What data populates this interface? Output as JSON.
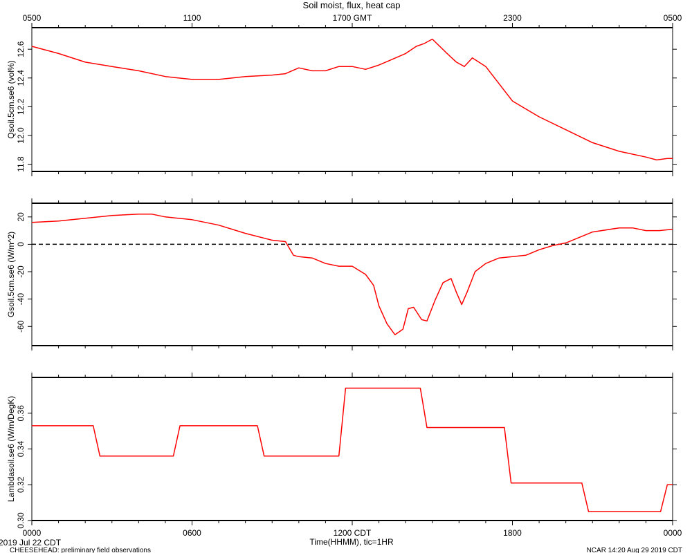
{
  "title": "Soil moist, flux, heat cap",
  "colors": {
    "series": "#ff0000",
    "axis": "#000000"
  },
  "x_axis": {
    "top_labels": [
      "0500",
      "1100",
      "1700 GMT",
      "2300",
      "0500"
    ],
    "bottom_labels": [
      "0000",
      "0600",
      "1200 CDT",
      "1800",
      "0000"
    ],
    "xlabel": "Time(HHMM), tic=1HR",
    "range_hours": [
      0,
      24
    ]
  },
  "footer": {
    "date": "2019 Jul 22 CDT",
    "project": "CHEESEHEAD: preliminary field observations",
    "stamp": "NCAR 14:20 Aug 29 2019 CDT"
  },
  "chart_data": [
    {
      "type": "line",
      "ylabel": "Qsoil.5cm.se6 (vol%)",
      "ylim": [
        11.75,
        12.75
      ],
      "yticks": [
        "11.8",
        "12.0",
        "12.2",
        "12.4",
        "12.6"
      ],
      "ytick_values": [
        11.8,
        12.0,
        12.2,
        12.4,
        12.6
      ],
      "x": [
        0,
        1,
        2,
        3,
        4,
        5,
        6,
        6.5,
        7,
        8,
        9,
        9.5,
        10,
        10.5,
        11,
        11.5,
        12,
        12.5,
        13,
        13.5,
        14,
        14.4,
        14.7,
        15,
        15.5,
        15.9,
        16.2,
        16.5,
        17,
        18,
        19,
        20,
        21,
        22,
        23,
        23.4,
        23.8,
        24
      ],
      "values": [
        12.62,
        12.57,
        12.51,
        12.48,
        12.45,
        12.41,
        12.39,
        12.39,
        12.39,
        12.41,
        12.42,
        12.43,
        12.47,
        12.45,
        12.45,
        12.48,
        12.48,
        12.46,
        12.49,
        12.53,
        12.57,
        12.62,
        12.64,
        12.67,
        12.58,
        12.51,
        12.48,
        12.54,
        12.48,
        12.24,
        12.13,
        12.04,
        11.95,
        11.89,
        11.85,
        11.83,
        11.84,
        11.84
      ]
    },
    {
      "type": "line",
      "ylabel": "Gsoil.5cm.se6 (W/m^2)",
      "ylim": [
        -74,
        30
      ],
      "yticks": [
        "20",
        "0",
        "-20",
        "-40",
        "-60"
      ],
      "ytick_values": [
        20,
        0,
        -20,
        -40,
        -60
      ],
      "reference_line": 0,
      "x": [
        0,
        1,
        2,
        3,
        4,
        4.5,
        5,
        6,
        7,
        8,
        9,
        9.5,
        9.8,
        10,
        10.5,
        11,
        11.5,
        12,
        12.5,
        12.8,
        13,
        13.3,
        13.6,
        13.9,
        14.1,
        14.3,
        14.6,
        14.8,
        15.1,
        15.4,
        15.7,
        15.9,
        16.1,
        16.3,
        16.6,
        17,
        17.5,
        18,
        18.5,
        19,
        19.5,
        20,
        21,
        22,
        22.5,
        23,
        23.5,
        24
      ],
      "values": [
        16,
        17,
        19,
        21,
        22,
        22,
        20,
        18,
        14,
        8,
        3,
        2,
        -8,
        -9,
        -10,
        -14,
        -16,
        -16,
        -22,
        -30,
        -45,
        -58,
        -66,
        -62,
        -47,
        -46,
        -55,
        -56,
        -41,
        -28,
        -25,
        -35,
        -44,
        -35,
        -20,
        -14,
        -10,
        -9,
        -8,
        -4,
        -1,
        1,
        9,
        12,
        12,
        10,
        10,
        11
      ]
    },
    {
      "type": "line",
      "ylabel": "Lambdasoil.se6 (W/m/DegK)",
      "ylim": [
        0.3,
        0.38
      ],
      "yticks": [
        "0.30",
        "0.32",
        "0.34",
        "0.36"
      ],
      "ytick_values": [
        0.3,
        0.32,
        0.34,
        0.36
      ],
      "x": [
        0,
        2.3,
        2.55,
        5.3,
        5.55,
        8.45,
        8.7,
        11.5,
        11.75,
        14.55,
        14.8,
        17.7,
        17.95,
        20.6,
        20.85,
        23.55,
        23.8,
        24
      ],
      "values": [
        0.353,
        0.353,
        0.336,
        0.336,
        0.353,
        0.353,
        0.336,
        0.336,
        0.374,
        0.374,
        0.352,
        0.352,
        0.321,
        0.321,
        0.305,
        0.305,
        0.32,
        0.32
      ]
    }
  ]
}
